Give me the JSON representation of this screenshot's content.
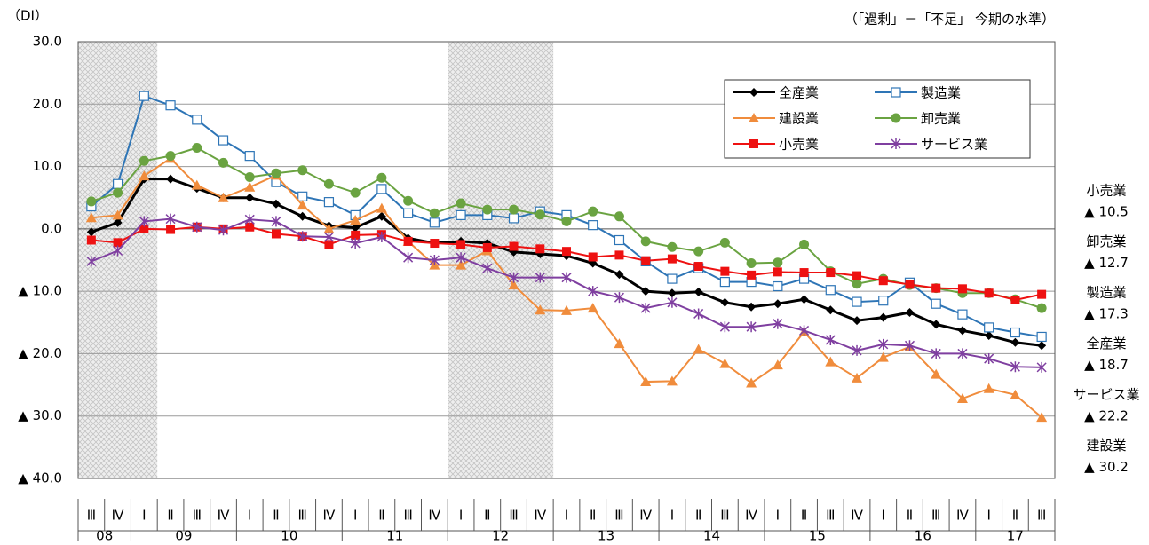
{
  "chart_data": {
    "type": "line",
    "y_unit_label": "（DI）",
    "subtitle": "（「過剰」－「不足」 今期の水準）",
    "categories": [
      "Ⅲ",
      "Ⅳ",
      "Ⅰ",
      "Ⅱ",
      "Ⅲ",
      "Ⅳ",
      "Ⅰ",
      "Ⅱ",
      "Ⅲ",
      "Ⅳ",
      "Ⅰ",
      "Ⅱ",
      "Ⅲ",
      "Ⅳ",
      "Ⅰ",
      "Ⅱ",
      "Ⅲ",
      "Ⅳ",
      "Ⅰ",
      "Ⅱ",
      "Ⅲ",
      "Ⅳ",
      "Ⅰ",
      "Ⅱ",
      "Ⅲ",
      "Ⅳ",
      "Ⅰ",
      "Ⅱ",
      "Ⅲ",
      "Ⅳ",
      "Ⅰ",
      "Ⅱ",
      "Ⅲ",
      "Ⅳ",
      "Ⅰ",
      "Ⅱ",
      "Ⅲ"
    ],
    "year_groups": [
      {
        "label": "08",
        "span": 2
      },
      {
        "label": "09",
        "span": 4
      },
      {
        "label": "10",
        "span": 4
      },
      {
        "label": "11",
        "span": 4
      },
      {
        "label": "12",
        "span": 4
      },
      {
        "label": "13",
        "span": 4
      },
      {
        "label": "14",
        "span": 4
      },
      {
        "label": "15",
        "span": 4
      },
      {
        "label": "16",
        "span": 4
      },
      {
        "label": "17",
        "span": 3
      }
    ],
    "shaded": [
      [
        0,
        2
      ],
      [
        14,
        17
      ]
    ],
    "ylim": [
      -40,
      30
    ],
    "yticks": [
      {
        "value": -40,
        "label": "▲ 40.0"
      },
      {
        "value": -30,
        "label": "▲ 30.0"
      },
      {
        "value": -20,
        "label": "▲ 20.0"
      },
      {
        "value": -10,
        "label": "▲ 10.0"
      },
      {
        "value": 0,
        "label": "0.0"
      },
      {
        "value": 10,
        "label": "10.0"
      },
      {
        "value": 20,
        "label": "20.0"
      },
      {
        "value": 30,
        "label": "30.0"
      }
    ],
    "grid": true,
    "series": [
      {
        "name": "全産業",
        "color": "#000000",
        "marker": "diamond",
        "values": [
          -0.5,
          1.0,
          8.0,
          8.0,
          6.5,
          5.0,
          5.0,
          4.0,
          2.0,
          0.5,
          0.2,
          2.0,
          -1.5,
          -2.3,
          -2.0,
          -2.3,
          -3.7,
          -4.0,
          -4.3,
          -5.5,
          -7.3,
          -10.0,
          -10.3,
          -10.1,
          -11.8,
          -12.5,
          -12.0,
          -11.3,
          -13.0,
          -14.7,
          -14.2,
          -13.4,
          -15.3,
          -16.3,
          -17.1,
          -18.2,
          -18.7
        ]
      },
      {
        "name": "製造業",
        "color": "#2e75b6",
        "marker": "open-square",
        "values": [
          3.6,
          7.2,
          21.3,
          19.8,
          17.5,
          14.2,
          11.7,
          7.5,
          5.2,
          4.3,
          2.2,
          6.4,
          2.5,
          1.0,
          2.2,
          2.2,
          1.7,
          2.8,
          2.2,
          0.6,
          -1.8,
          -5.2,
          -8.0,
          -6.3,
          -8.5,
          -8.5,
          -9.2,
          -8.0,
          -9.8,
          -11.7,
          -11.5,
          -8.6,
          -12.0,
          -13.7,
          -15.8,
          -16.6,
          -17.3
        ]
      },
      {
        "name": "建設業",
        "color": "#f08c3c",
        "marker": "triangle",
        "values": [
          1.8,
          2.2,
          8.5,
          11.3,
          7.0,
          5.0,
          6.7,
          8.6,
          3.8,
          0.0,
          1.4,
          3.3,
          -2.0,
          -5.8,
          -5.8,
          -3.5,
          -9.0,
          -13.0,
          -13.1,
          -12.7,
          -18.4,
          -24.5,
          -24.4,
          -19.3,
          -21.6,
          -24.7,
          -21.8,
          -16.5,
          -21.3,
          -23.9,
          -20.6,
          -18.9,
          -23.3,
          -27.2,
          -25.6,
          -26.6,
          -30.2
        ]
      },
      {
        "name": "卸売業",
        "color": "#6aa341",
        "marker": "circle",
        "values": [
          4.4,
          5.8,
          10.9,
          11.7,
          13.0,
          10.6,
          8.3,
          8.9,
          9.4,
          7.2,
          5.8,
          8.2,
          4.5,
          2.5,
          4.1,
          3.1,
          3.1,
          2.3,
          1.2,
          2.8,
          2.0,
          -2.0,
          -2.9,
          -3.6,
          -2.2,
          -5.5,
          -5.4,
          -2.5,
          -6.8,
          -8.8,
          -8.0,
          -9.0,
          -9.5,
          -10.3,
          -10.3,
          -11.3,
          -12.7
        ]
      },
      {
        "name": "小売業",
        "color": "#ee1111",
        "marker": "square",
        "values": [
          -1.8,
          -2.2,
          0.0,
          -0.1,
          0.3,
          0.0,
          0.3,
          -0.8,
          -1.2,
          -2.5,
          -1.0,
          -0.9,
          -2.0,
          -2.3,
          -2.5,
          -3.0,
          -2.8,
          -3.2,
          -3.6,
          -4.5,
          -4.2,
          -5.1,
          -4.8,
          -6.0,
          -6.8,
          -7.4,
          -6.9,
          -7.0,
          -7.0,
          -7.5,
          -8.3,
          -8.9,
          -9.5,
          -9.6,
          -10.3,
          -11.4,
          -10.5
        ]
      },
      {
        "name": "サービス業",
        "color": "#7f3fa0",
        "marker": "star",
        "values": [
          -5.2,
          -3.5,
          1.2,
          1.6,
          0.3,
          -0.2,
          1.5,
          1.2,
          -1.2,
          -1.3,
          -2.3,
          -1.3,
          -4.6,
          -5.0,
          -4.6,
          -6.3,
          -7.8,
          -7.8,
          -7.8,
          -10.0,
          -11.0,
          -12.7,
          -11.8,
          -13.6,
          -15.7,
          -15.7,
          -15.2,
          -16.3,
          -17.8,
          -19.5,
          -18.5,
          -18.7,
          -20.0,
          -20.0,
          -20.8,
          -22.1,
          -22.2
        ]
      }
    ],
    "end_labels": [
      {
        "name": "小売業",
        "label": "▲ 10.5"
      },
      {
        "name": "卸売業",
        "label": "▲ 12.7"
      },
      {
        "name": "製造業",
        "label": "▲ 17.3"
      },
      {
        "name": "全産業",
        "label": "▲ 18.7"
      },
      {
        "name": "サービス業",
        "label": "▲ 22.2"
      },
      {
        "name": "建設業",
        "label": "▲ 30.2"
      }
    ]
  }
}
